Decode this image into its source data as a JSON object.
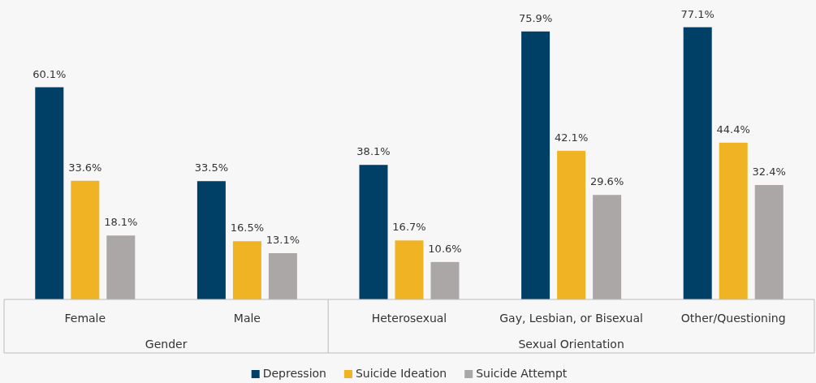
{
  "chart_data": {
    "type": "bar",
    "categories": [
      "Female",
      "Male",
      "Heterosexual",
      "Gay, Lesbian, or Bisexual",
      "Other/Questioning"
    ],
    "series": [
      {
        "name": "Depression",
        "color": "#003f66",
        "values": [
          60.1,
          33.5,
          38.1,
          75.9,
          77.1
        ],
        "value_labels": [
          "60.1%",
          "33.5%",
          "38.1%",
          "75.9%",
          "77.1%"
        ]
      },
      {
        "name": "Suicide Ideation",
        "color": "#f0b323",
        "values": [
          33.6,
          16.5,
          16.7,
          42.1,
          44.4
        ],
        "value_labels": [
          "33.6%",
          "16.5%",
          "16.7%",
          "42.1%",
          "44.4%"
        ]
      },
      {
        "name": "Suicide Attempt",
        "color": "#aba7a7",
        "values": [
          18.1,
          13.1,
          10.6,
          29.6,
          32.4
        ],
        "value_labels": [
          "18.1%",
          "13.1%",
          "10.6%",
          "29.6%",
          "32.4%"
        ]
      }
    ],
    "legend": "bottom",
    "annotations": [
      "Gender",
      "Sexual Orientation"
    ]
  }
}
